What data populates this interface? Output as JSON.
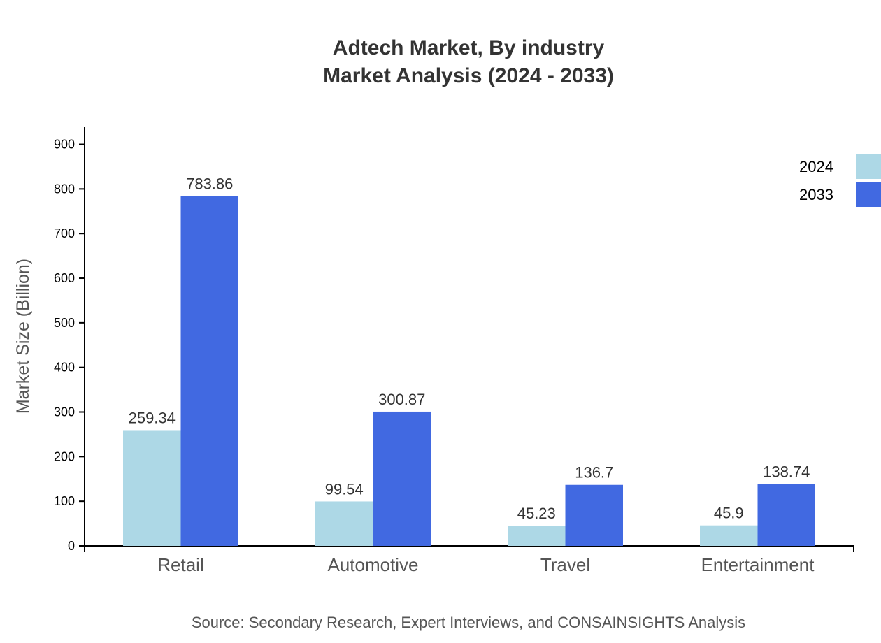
{
  "chart_data": {
    "type": "bar",
    "title": "Adtech Market, By industry",
    "subtitle": "Market Analysis (2024 - 2033)",
    "xlabel": "",
    "ylabel": "Market Size (Billion)",
    "categories": [
      "Retail",
      "Automotive",
      "Travel",
      "Entertainment"
    ],
    "series": [
      {
        "name": "2024",
        "color": "#add8e6",
        "values": [
          259.34,
          99.54,
          45.23,
          45.9
        ]
      },
      {
        "name": "2033",
        "color": "#4169e1",
        "values": [
          783.86,
          300.87,
          136.7,
          138.74
        ]
      }
    ],
    "ylim": [
      0,
      940
    ],
    "yticks": [
      0,
      100,
      200,
      300,
      400,
      500,
      600,
      700,
      800,
      900
    ],
    "grid": false,
    "legend": "top-right",
    "source": "Source: Secondary Research, Expert Interviews, and CONSAINSIGHTS Analysis"
  }
}
